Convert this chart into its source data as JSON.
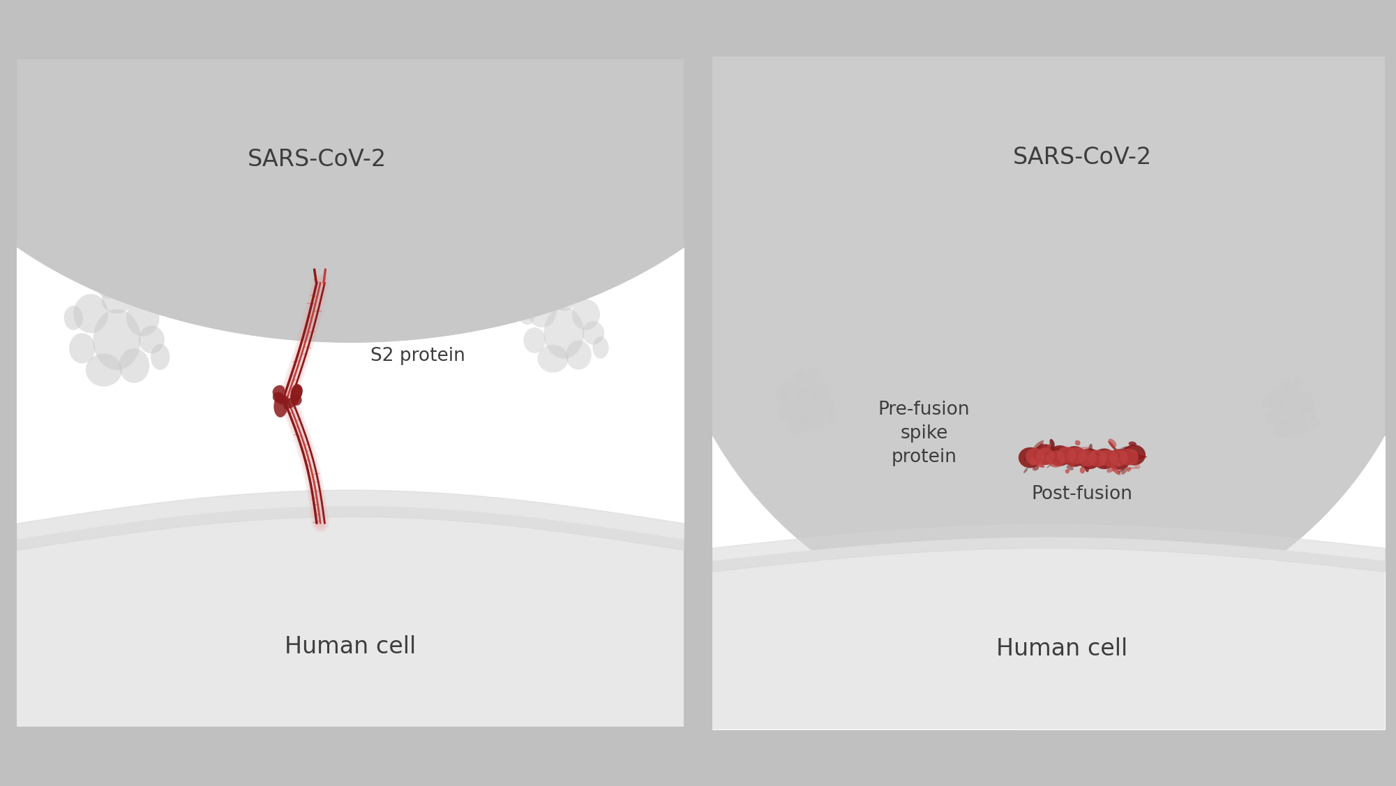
{
  "bg_color": "#c0c0c0",
  "panel_bg": "#f5f5f5",
  "gray_virus": "#c8c8c8",
  "gray_virus2": "#cccccc",
  "white": "#ffffff",
  "cell_surface": "#e8e8e8",
  "text_color": "#3d3d3d",
  "s2_red": "#c04040",
  "s2_dark": "#8b1a1a",
  "s2_light": "#e8a0a0",
  "spike_gray": "#c0c0c0",
  "panel1_title": "SARS-CoV-2",
  "panel1_cell": "Human cell",
  "panel1_protein": "S2 protein",
  "panel2_title": "SARS-CoV-2",
  "panel2_cell": "Human cell",
  "panel2_prefusion": "Pre-fusion\nspike\nprotein",
  "panel2_postfusion": "Post-fusion",
  "font_size_title": 24,
  "font_size_label": 19
}
